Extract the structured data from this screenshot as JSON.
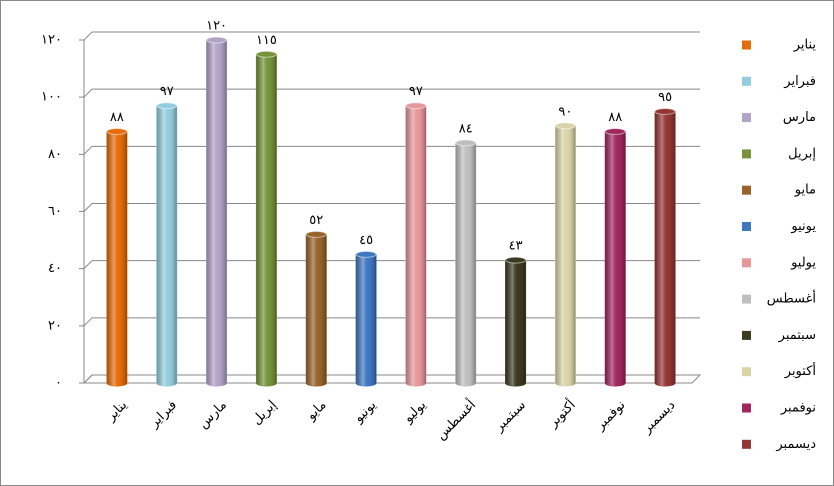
{
  "chart_data": {
    "type": "bar",
    "categories": [
      "يناير",
      "فبراير",
      "مارس",
      "إبريل",
      "مايو",
      "يونيو",
      "يوليو",
      "أغسطس",
      "سبتمبر",
      "أكتوبر",
      "نوفمبر",
      "ديسمبر"
    ],
    "values": [
      88,
      97,
      120,
      115,
      52,
      45,
      97,
      84,
      43,
      90,
      88,
      95
    ],
    "value_labels": [
      "٨٨",
      "٩٧",
      "١٢٠",
      "١١٥",
      "٥٢",
      "٤٥",
      "٩٧",
      "٨٤",
      "٤٣",
      "٩٠",
      "٨٨",
      "٩٥"
    ],
    "colors": [
      "#e46c0a",
      "#93cddd",
      "#b3a2c7",
      "#77933c",
      "#98642c",
      "#3f78c1",
      "#e6979a",
      "#bfbfbf",
      "#3d3a22",
      "#d9d3a8",
      "#a0285f",
      "#953735"
    ],
    "ylim": [
      0,
      120
    ],
    "yticks": [
      {
        "value": 0,
        "label": "٠"
      },
      {
        "value": 20,
        "label": "٢٠"
      },
      {
        "value": 40,
        "label": "٤٠"
      },
      {
        "value": 60,
        "label": "٦٠"
      },
      {
        "value": 80,
        "label": "٨٠"
      },
      {
        "value": 100,
        "label": "١٠٠"
      },
      {
        "value": 120,
        "label": "١٢٠"
      }
    ],
    "grid": true,
    "legend": "right"
  }
}
